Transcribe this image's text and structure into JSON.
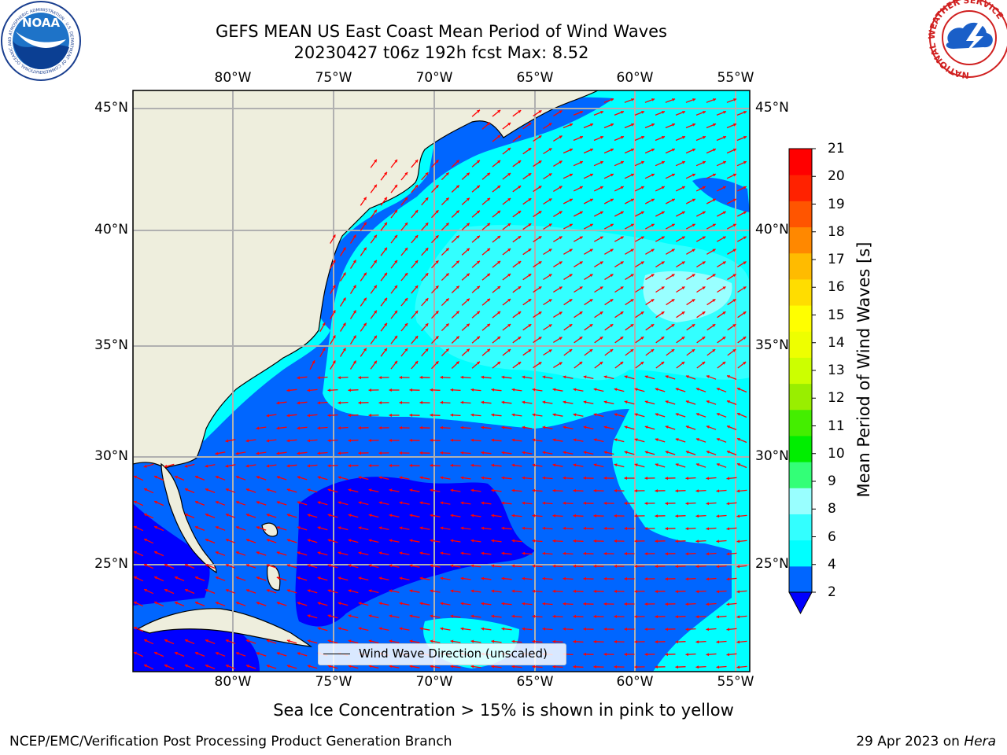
{
  "titles": {
    "line1": "GEFS MEAN US East Coast Mean Period of Wind Waves",
    "line2": "20230427 t06z 192h fcst   Max: 8.52"
  },
  "map": {
    "lon_labels": [
      "80°W",
      "75°W",
      "70°W",
      "65°W",
      "60°W",
      "55°W"
    ],
    "lat_labels": [
      "45°N",
      "40°N",
      "35°N",
      "30°N",
      "25°N"
    ],
    "extent": {
      "lon": [
        -85,
        -54.2
      ],
      "lat": [
        20.4,
        46
      ]
    },
    "gridlines": true,
    "legend_label": "Wind Wave Direction (unscaled)",
    "arrow_color": "#ff0000",
    "land_color": "#eeeedd"
  },
  "colorbar": {
    "label": "Mean Period of Wind Waves [s]",
    "tick_labels": [
      "2",
      "4",
      "6",
      "8",
      "9",
      "10",
      "11",
      "12",
      "13",
      "14",
      "15",
      "16",
      "17",
      "18",
      "19",
      "20",
      "21"
    ],
    "extend": "min",
    "colors": [
      "#0066ff",
      "#00ffff",
      "#33ffff",
      "#99ffff",
      "#33ff77",
      "#00ee00",
      "#44ee00",
      "#99ee00",
      "#ccff00",
      "#eeff00",
      "#ffff00",
      "#ffdd00",
      "#ffbb00",
      "#ff8800",
      "#ff5500",
      "#ff2200",
      "#ff0000"
    ],
    "under_color": "#0000ff"
  },
  "footer": {
    "note": "Sea Ice Concentration > 15% is shown in pink to yellow",
    "left": "NCEP/EMC/Verification Post Processing Product Generation Branch",
    "right_date": "29 Apr 2023 on ",
    "right_host": "Hera"
  },
  "logos": {
    "noaa": "NOAA",
    "noaa_ring": "NATIONAL OCEANIC AND ATMOSPHERIC ADMINISTRATION · U.S. DEPARTMENT OF COMMERCE",
    "nws_ring": "NATIONAL WEATHER SERVICE"
  }
}
